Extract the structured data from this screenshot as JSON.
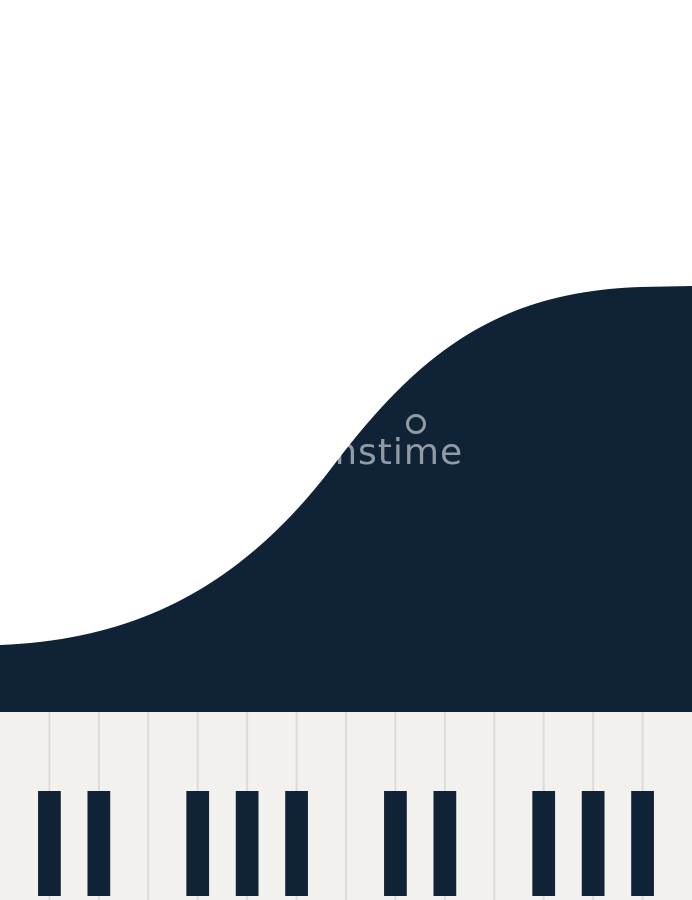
{
  "watermark": {
    "text": "dreamstime"
  },
  "colors": {
    "background": "#ffffff",
    "piano_body": "#0f2236",
    "white_key": "#f2f1ee",
    "white_key_gap": "#dcdbd7",
    "black_key": "#0f2236"
  },
  "keyboard": {
    "white_key_count": 14,
    "black_key_groups": [
      2,
      3,
      2,
      3
    ]
  }
}
